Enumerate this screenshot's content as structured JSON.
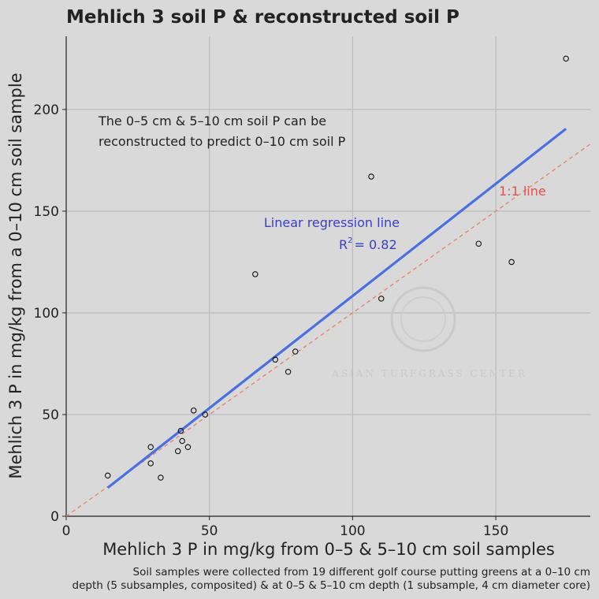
{
  "chart_data": {
    "type": "scatter",
    "title": "Mehlich 3 soil P & reconstructed soil P",
    "xlabel": "Mehlich 3 P in mg/kg from 0–5 & 5–10 cm soil samples",
    "ylabel": "Mehlich 3 P in mg/kg from a 0–10 cm soil sample",
    "xlim": [
      0,
      183
    ],
    "ylim": [
      0,
      236
    ],
    "x_ticks": [
      0,
      50,
      100,
      150
    ],
    "y_ticks": [
      0,
      50,
      100,
      150,
      200
    ],
    "grid": true,
    "points": [
      {
        "x": 14.5,
        "y": 20
      },
      {
        "x": 29.5,
        "y": 34
      },
      {
        "x": 29.5,
        "y": 26
      },
      {
        "x": 33,
        "y": 19
      },
      {
        "x": 39,
        "y": 32
      },
      {
        "x": 40,
        "y": 42
      },
      {
        "x": 40.5,
        "y": 37
      },
      {
        "x": 42.5,
        "y": 34
      },
      {
        "x": 44.5,
        "y": 52
      },
      {
        "x": 48.5,
        "y": 50
      },
      {
        "x": 66,
        "y": 119
      },
      {
        "x": 73,
        "y": 77
      },
      {
        "x": 77.5,
        "y": 71
      },
      {
        "x": 80,
        "y": 81
      },
      {
        "x": 106.5,
        "y": 167
      },
      {
        "x": 110,
        "y": 107
      },
      {
        "x": 144,
        "y": 134
      },
      {
        "x": 155.5,
        "y": 125
      },
      {
        "x": 174.5,
        "y": 225
      }
    ],
    "regression_line": {
      "x": [
        14.5,
        174.5
      ],
      "y": [
        14,
        190.5
      ],
      "color": "#4a6fe0"
    },
    "identity_line": {
      "x": [
        0,
        183
      ],
      "y": [
        0,
        183
      ],
      "color": "#e8806f"
    },
    "annotations": {
      "note_line1": "The 0–5 cm & 5–10 cm soil P can be",
      "note_line2": "reconstructed to predict 0–10 cm soil P",
      "regression_label": "Linear regression line",
      "r2_label": "R",
      "r2_sup": "2",
      "r2_value": "= 0.82",
      "identity_label": "1:1 line"
    },
    "caption_line1": "Soil samples were collected from 19 different golf course putting greens at a 0–10 cm",
    "caption_line2": "depth (5 subsamples, composited) & at 0–5 & 5–10 cm depth (1 subsample, 4 cm diameter core)",
    "watermark": "ASIAN TURFGRASS CENTER"
  }
}
